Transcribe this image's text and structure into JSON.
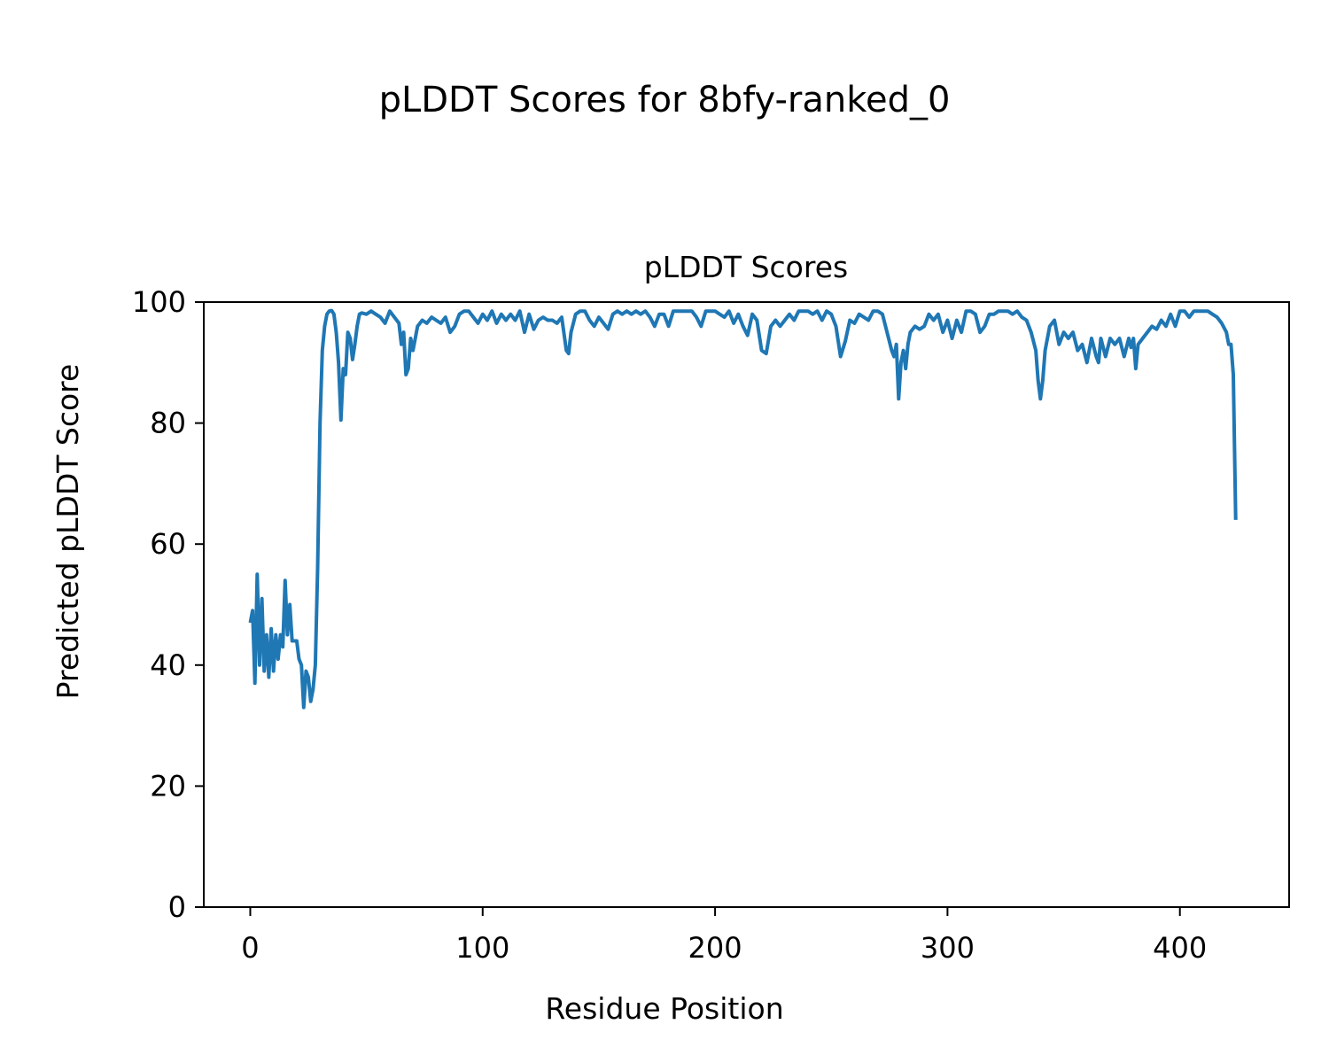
{
  "figure_title": "pLDDT Scores for 8bfy-ranked_0",
  "colors": {
    "series": "#1f77b4",
    "axes": "#000000",
    "background": "#ffffff"
  },
  "chart_data": {
    "type": "line",
    "title": "pLDDT Scores",
    "xlabel": "Residue Position",
    "ylabel": "Predicted pLDDT Score",
    "xlim": [
      -20,
      447
    ],
    "ylim": [
      0,
      100
    ],
    "xticks": [
      0,
      100,
      200,
      300,
      400
    ],
    "yticks": [
      0,
      20,
      40,
      60,
      80,
      100
    ],
    "grid": false,
    "series": [
      {
        "points": [
          [
            0,
            47
          ],
          [
            1,
            49
          ],
          [
            2,
            37
          ],
          [
            3,
            55
          ],
          [
            4,
            40
          ],
          [
            5,
            51
          ],
          [
            6,
            39
          ],
          [
            7,
            45
          ],
          [
            8,
            38
          ],
          [
            9,
            46
          ],
          [
            10,
            39
          ],
          [
            11,
            45
          ],
          [
            12,
            41
          ],
          [
            13,
            45
          ],
          [
            14,
            43
          ],
          [
            15,
            54
          ],
          [
            16,
            45
          ],
          [
            17,
            50
          ],
          [
            18,
            44
          ],
          [
            19,
            44
          ],
          [
            20,
            44
          ],
          [
            21,
            41
          ],
          [
            22,
            40
          ],
          [
            23,
            33
          ],
          [
            24,
            39
          ],
          [
            25,
            38
          ],
          [
            26,
            34
          ],
          [
            27,
            36
          ],
          [
            28,
            40
          ],
          [
            29,
            56
          ],
          [
            30,
            80
          ],
          [
            31,
            92
          ],
          [
            32,
            96
          ],
          [
            33,
            98
          ],
          [
            34,
            98.5
          ],
          [
            35,
            98.6
          ],
          [
            36,
            98
          ],
          [
            37,
            95
          ],
          [
            38,
            90
          ],
          [
            39,
            80.5
          ],
          [
            40,
            89
          ],
          [
            41,
            88
          ],
          [
            42,
            95
          ],
          [
            43,
            94
          ],
          [
            44,
            90.5
          ],
          [
            45,
            93
          ],
          [
            46,
            96
          ],
          [
            47,
            98
          ],
          [
            48,
            98.2
          ],
          [
            50,
            98
          ],
          [
            52,
            98.5
          ],
          [
            54,
            98
          ],
          [
            56,
            97.5
          ],
          [
            58,
            96.5
          ],
          [
            60,
            98.5
          ],
          [
            62,
            97.5
          ],
          [
            64,
            96.5
          ],
          [
            65,
            93
          ],
          [
            66,
            95
          ],
          [
            67,
            88
          ],
          [
            68,
            89
          ],
          [
            69,
            94
          ],
          [
            70,
            92
          ],
          [
            72,
            96
          ],
          [
            74,
            97
          ],
          [
            76,
            96.5
          ],
          [
            78,
            97.5
          ],
          [
            80,
            97
          ],
          [
            82,
            96.5
          ],
          [
            84,
            97.5
          ],
          [
            86,
            95
          ],
          [
            88,
            96
          ],
          [
            90,
            98
          ],
          [
            92,
            98.5
          ],
          [
            94,
            98.5
          ],
          [
            96,
            97.5
          ],
          [
            98,
            96.5
          ],
          [
            100,
            98
          ],
          [
            102,
            97
          ],
          [
            104,
            98.5
          ],
          [
            106,
            96.5
          ],
          [
            108,
            98
          ],
          [
            110,
            97
          ],
          [
            112,
            98
          ],
          [
            114,
            97
          ],
          [
            116,
            98.5
          ],
          [
            118,
            95
          ],
          [
            120,
            98
          ],
          [
            122,
            95.5
          ],
          [
            124,
            97
          ],
          [
            126,
            97.5
          ],
          [
            128,
            97
          ],
          [
            130,
            97
          ],
          [
            132,
            96.5
          ],
          [
            134,
            97.5
          ],
          [
            136,
            92
          ],
          [
            137,
            91.5
          ],
          [
            138,
            95
          ],
          [
            140,
            98
          ],
          [
            142,
            98.5
          ],
          [
            144,
            98.5
          ],
          [
            146,
            97
          ],
          [
            148,
            96
          ],
          [
            150,
            97.5
          ],
          [
            152,
            96.5
          ],
          [
            154,
            95.5
          ],
          [
            156,
            98
          ],
          [
            158,
            98.5
          ],
          [
            160,
            98
          ],
          [
            162,
            98.5
          ],
          [
            164,
            98
          ],
          [
            166,
            98.5
          ],
          [
            168,
            98
          ],
          [
            170,
            98.5
          ],
          [
            172,
            97.5
          ],
          [
            174,
            96
          ],
          [
            176,
            98
          ],
          [
            178,
            98
          ],
          [
            180,
            96
          ],
          [
            182,
            98.5
          ],
          [
            184,
            98.5
          ],
          [
            186,
            98.5
          ],
          [
            188,
            98.5
          ],
          [
            190,
            98.5
          ],
          [
            192,
            97.5
          ],
          [
            194,
            96
          ],
          [
            196,
            98.5
          ],
          [
            198,
            98.5
          ],
          [
            200,
            98.5
          ],
          [
            202,
            98
          ],
          [
            204,
            97.5
          ],
          [
            206,
            98.5
          ],
          [
            208,
            96.5
          ],
          [
            210,
            98
          ],
          [
            212,
            96
          ],
          [
            214,
            94.5
          ],
          [
            216,
            98
          ],
          [
            218,
            97
          ],
          [
            220,
            92
          ],
          [
            222,
            91.5
          ],
          [
            224,
            96
          ],
          [
            226,
            97
          ],
          [
            228,
            96
          ],
          [
            230,
            97
          ],
          [
            232,
            98
          ],
          [
            234,
            97
          ],
          [
            236,
            98.5
          ],
          [
            238,
            98.5
          ],
          [
            240,
            98.5
          ],
          [
            242,
            98
          ],
          [
            244,
            98.5
          ],
          [
            246,
            97
          ],
          [
            248,
            98.5
          ],
          [
            250,
            98
          ],
          [
            252,
            96
          ],
          [
            254,
            91
          ],
          [
            256,
            93.5
          ],
          [
            258,
            97
          ],
          [
            260,
            96.5
          ],
          [
            262,
            98
          ],
          [
            264,
            97.5
          ],
          [
            266,
            97
          ],
          [
            268,
            98.5
          ],
          [
            270,
            98.5
          ],
          [
            272,
            98
          ],
          [
            274,
            95
          ],
          [
            276,
            92
          ],
          [
            277,
            91
          ],
          [
            278,
            93
          ],
          [
            279,
            84
          ],
          [
            280,
            90
          ],
          [
            281,
            92
          ],
          [
            282,
            89
          ],
          [
            283,
            93
          ],
          [
            284,
            95
          ],
          [
            286,
            96
          ],
          [
            288,
            95.5
          ],
          [
            290,
            96
          ],
          [
            292,
            98
          ],
          [
            294,
            97
          ],
          [
            296,
            98
          ],
          [
            298,
            95
          ],
          [
            300,
            97
          ],
          [
            302,
            94
          ],
          [
            304,
            97
          ],
          [
            306,
            95
          ],
          [
            308,
            98.5
          ],
          [
            310,
            98.5
          ],
          [
            312,
            98
          ],
          [
            314,
            95
          ],
          [
            316,
            96
          ],
          [
            318,
            98
          ],
          [
            320,
            98
          ],
          [
            322,
            98.5
          ],
          [
            324,
            98.5
          ],
          [
            326,
            98.5
          ],
          [
            328,
            98
          ],
          [
            330,
            98.5
          ],
          [
            332,
            97.5
          ],
          [
            334,
            97
          ],
          [
            336,
            95
          ],
          [
            338,
            92
          ],
          [
            339,
            87
          ],
          [
            340,
            84
          ],
          [
            341,
            87
          ],
          [
            342,
            92
          ],
          [
            344,
            96
          ],
          [
            346,
            97
          ],
          [
            348,
            93
          ],
          [
            350,
            95
          ],
          [
            352,
            94
          ],
          [
            354,
            95
          ],
          [
            356,
            92
          ],
          [
            358,
            93
          ],
          [
            360,
            90
          ],
          [
            362,
            94
          ],
          [
            364,
            91
          ],
          [
            365,
            90
          ],
          [
            366,
            94
          ],
          [
            368,
            91
          ],
          [
            370,
            94
          ],
          [
            372,
            93
          ],
          [
            374,
            94
          ],
          [
            376,
            91
          ],
          [
            378,
            94
          ],
          [
            379,
            92.5
          ],
          [
            380,
            94
          ],
          [
            381,
            89
          ],
          [
            382,
            93
          ],
          [
            384,
            94
          ],
          [
            386,
            95
          ],
          [
            388,
            96
          ],
          [
            390,
            95.5
          ],
          [
            392,
            97
          ],
          [
            394,
            96
          ],
          [
            396,
            98
          ],
          [
            398,
            96
          ],
          [
            400,
            98.5
          ],
          [
            402,
            98.5
          ],
          [
            404,
            97.5
          ],
          [
            406,
            98.5
          ],
          [
            408,
            98.5
          ],
          [
            410,
            98.5
          ],
          [
            412,
            98.5
          ],
          [
            414,
            98
          ],
          [
            416,
            97.5
          ],
          [
            418,
            96.5
          ],
          [
            420,
            95
          ],
          [
            421,
            93
          ],
          [
            422,
            93
          ],
          [
            423,
            88
          ],
          [
            424,
            64
          ]
        ]
      }
    ]
  }
}
